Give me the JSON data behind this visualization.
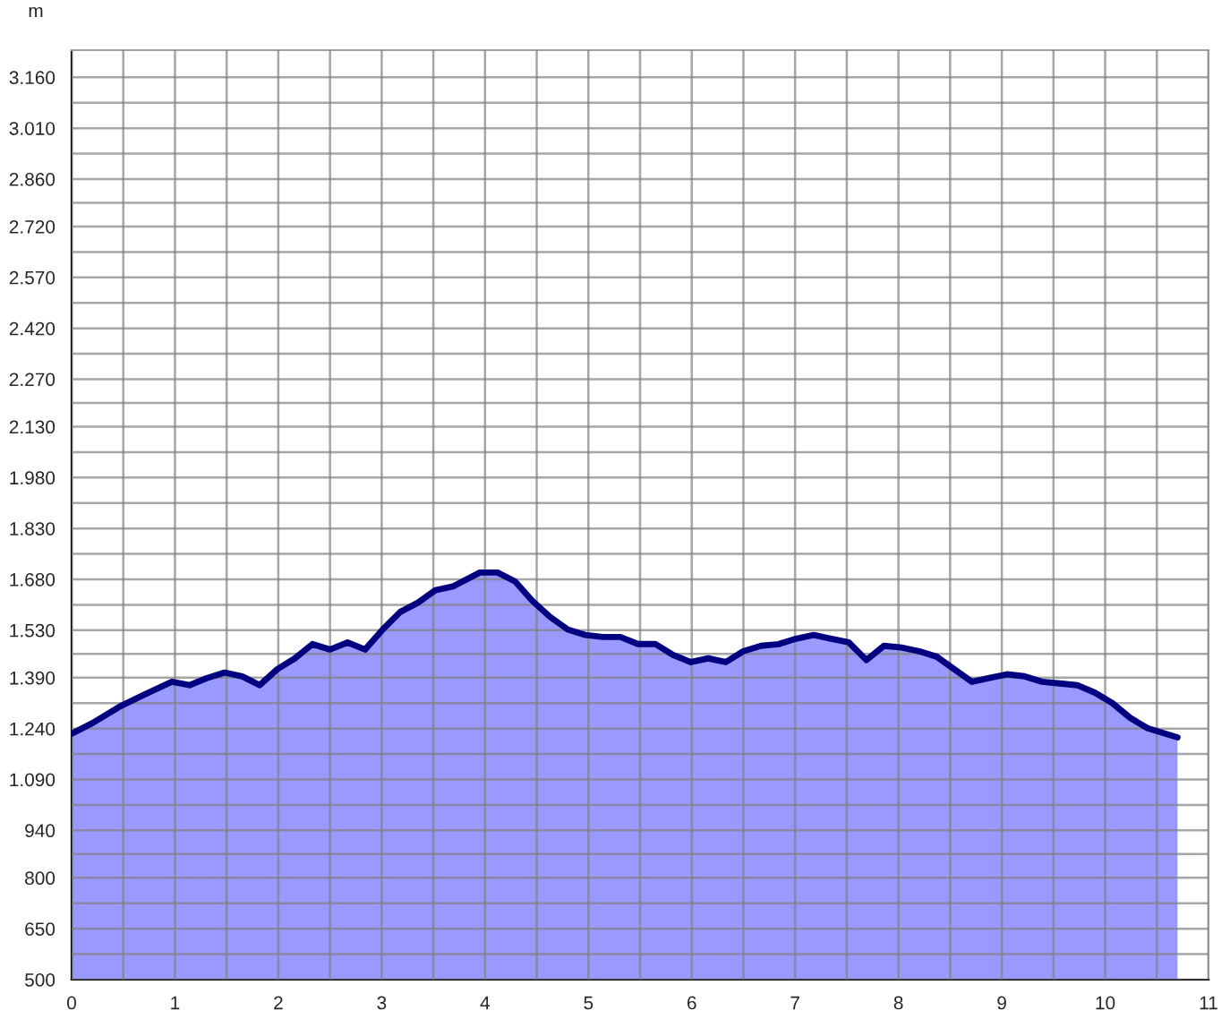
{
  "chart_data": {
    "type": "area",
    "ylabel": "m",
    "x": [
      0,
      0.2,
      0.46,
      0.71,
      0.97,
      1.14,
      1.31,
      1.48,
      1.65,
      1.82,
      1.99,
      2.16,
      2.33,
      2.5,
      2.67,
      2.84,
      3.01,
      3.18,
      3.35,
      3.52,
      3.69,
      3.95,
      4.12,
      4.29,
      4.46,
      4.63,
      4.8,
      4.97,
      5.14,
      5.31,
      5.48,
      5.65,
      5.82,
      5.99,
      6.16,
      6.33,
      6.5,
      6.67,
      6.84,
      7.01,
      7.18,
      7.35,
      7.52,
      7.69,
      7.86,
      8.03,
      8.2,
      8.37,
      8.54,
      8.71,
      8.88,
      9.05,
      9.22,
      9.39,
      9.56,
      9.73,
      9.9,
      10.07,
      10.24,
      10.41,
      10.7
    ],
    "series": [
      {
        "color": "#9999ff",
        "values": [
          1225,
          1256,
          1304,
          1341,
          1378,
          1368,
          1389,
          1405,
          1394,
          1368,
          1415,
          1447,
          1489,
          1473,
          1494,
          1473,
          1532,
          1584,
          1611,
          1648,
          1659,
          1700,
          1700,
          1674,
          1616,
          1569,
          1532,
          1516,
          1510,
          1510,
          1489,
          1489,
          1457,
          1436,
          1447,
          1436,
          1468,
          1484,
          1489,
          1505,
          1516,
          1505,
          1494,
          1442,
          1484,
          1479,
          1468,
          1452,
          1415,
          1378,
          1389,
          1400,
          1394,
          1378,
          1373,
          1368,
          1346,
          1315,
          1272,
          1241,
          1214
        ]
      }
    ],
    "xlim": [
      0,
      11
    ],
    "xticks": [
      0,
      {
        "value": 0.5,
        "label": null
      },
      1,
      {
        "value": 1.5,
        "label": null
      },
      2,
      {
        "value": 2.5,
        "label": null
      },
      3,
      {
        "value": 3.5,
        "label": null
      },
      4,
      {
        "value": 4.5,
        "label": null
      },
      5,
      {
        "value": 5.5,
        "label": null
      },
      6,
      {
        "value": 6.5,
        "label": null
      },
      7,
      {
        "value": 7.5,
        "label": null
      },
      8,
      {
        "value": 8.5,
        "label": null
      },
      9,
      {
        "value": 9.5,
        "label": null
      },
      10,
      {
        "value": 10.5,
        "label": null
      },
      11
    ],
    "ylim": [
      500,
      3240
    ],
    "yticks": [
      500,
      {
        "value": 575,
        "label": null
      },
      650,
      {
        "value": 725,
        "label": null
      },
      800,
      {
        "value": 870,
        "label": null
      },
      940,
      {
        "value": 1015,
        "label": null
      },
      {
        "value": 1090,
        "label": "1.090"
      },
      {
        "value": 1165,
        "label": null
      },
      {
        "value": 1240,
        "label": "1.240"
      },
      {
        "value": 1315,
        "label": null
      },
      {
        "value": 1390,
        "label": "1.390"
      },
      {
        "value": 1460,
        "label": null
      },
      {
        "value": 1530,
        "label": "1.530"
      },
      {
        "value": 1605,
        "label": null
      },
      {
        "value": 1680,
        "label": "1.680"
      },
      {
        "value": 1755,
        "label": null
      },
      {
        "value": 1830,
        "label": "1.830"
      },
      {
        "value": 1905,
        "label": null
      },
      {
        "value": 1980,
        "label": "1.980"
      },
      {
        "value": 2055,
        "label": null
      },
      {
        "value": 2130,
        "label": "2.130"
      },
      {
        "value": 2200,
        "label": null
      },
      {
        "value": 2270,
        "label": "2.270"
      },
      {
        "value": 2345,
        "label": null
      },
      {
        "value": 2420,
        "label": "2.420"
      },
      {
        "value": 2495,
        "label": null
      },
      {
        "value": 2570,
        "label": "2.570"
      },
      {
        "value": 2645,
        "label": null
      },
      {
        "value": 2720,
        "label": "2.720"
      },
      {
        "value": 2790,
        "label": null
      },
      {
        "value": 2860,
        "label": "2.860"
      },
      {
        "value": 2935,
        "label": null
      },
      {
        "value": 3010,
        "label": "3.010"
      },
      {
        "value": 3085,
        "label": null
      },
      {
        "value": 3160,
        "label": "3.160"
      }
    ],
    "grid": true,
    "legend": false
  }
}
